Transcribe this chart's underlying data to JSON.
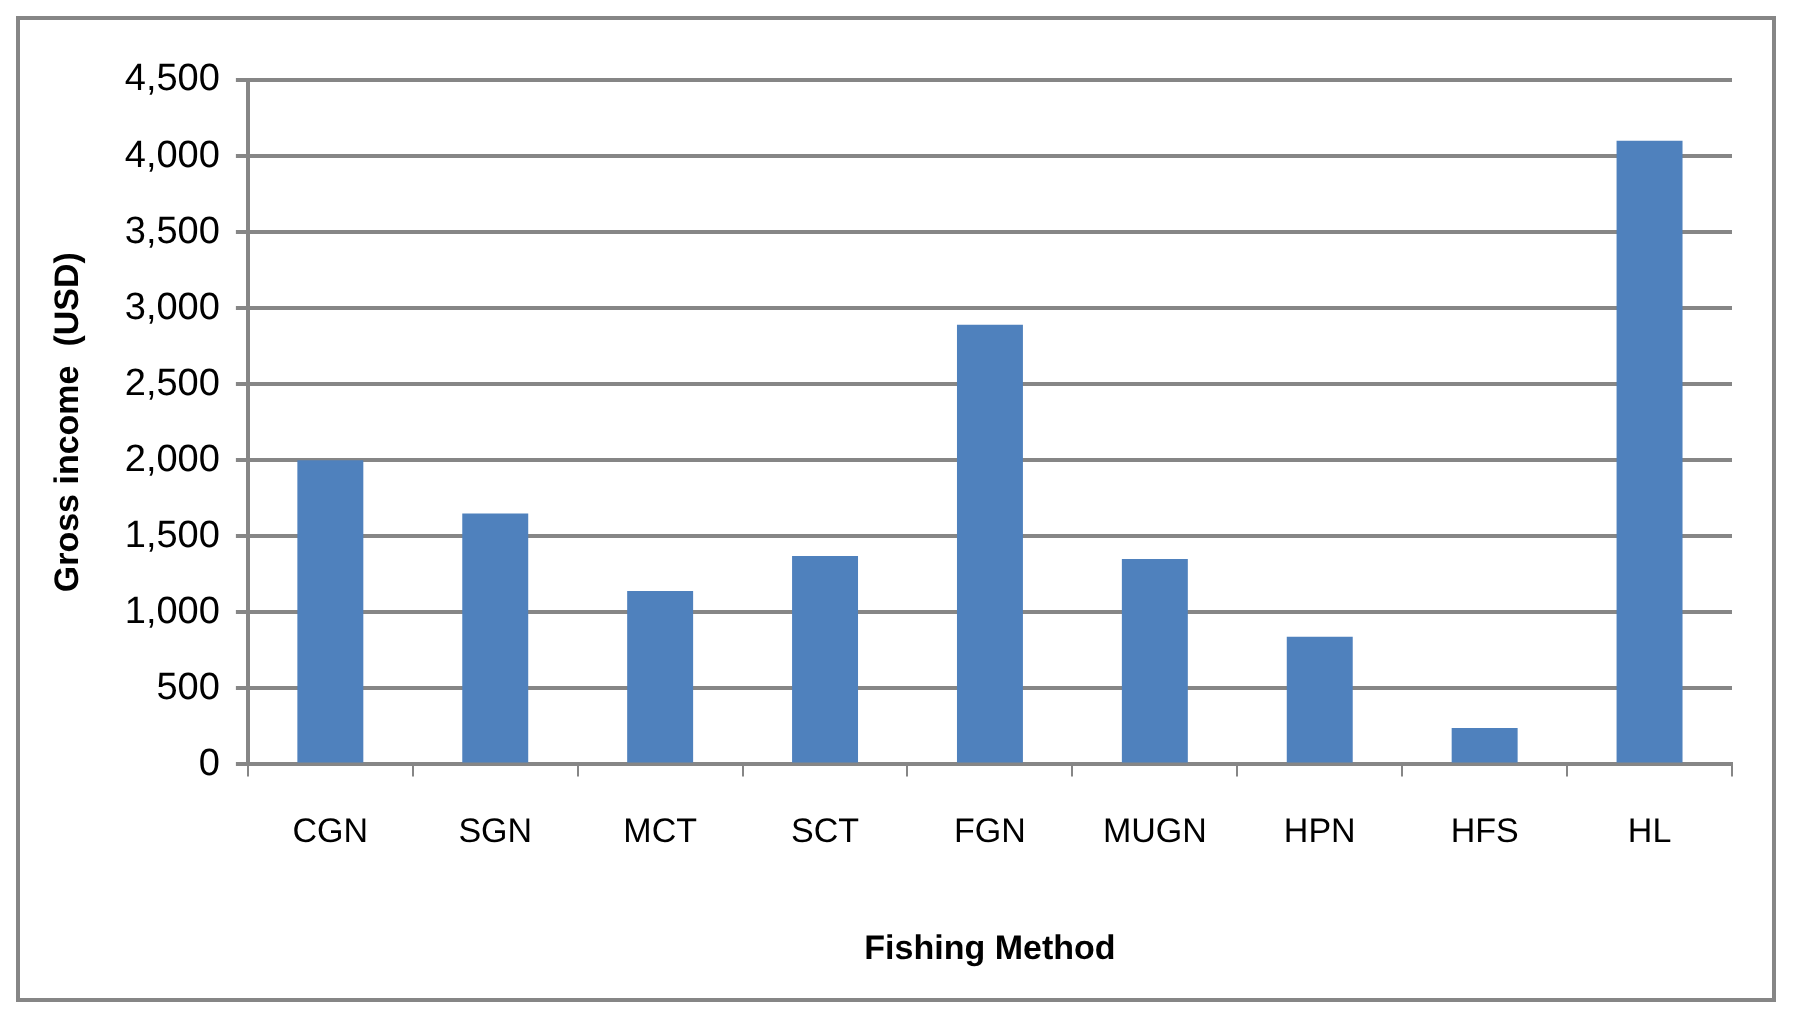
{
  "chart_data": {
    "type": "bar",
    "xlabel": "Fishing Method",
    "ylabel": "Gross income  (USD)",
    "categories": [
      "CGN",
      "SGN",
      "MCT",
      "SCT",
      "FGN",
      "MUGN",
      "HPN",
      "HFS",
      "HL"
    ],
    "values": [
      2000,
      1650,
      1140,
      1370,
      2890,
      1350,
      840,
      240,
      4100
    ],
    "color": "#4f81bd",
    "ylim": [
      0,
      4500
    ],
    "yticks": [
      0,
      500,
      {
        "value": 1000,
        "label": "1,000"
      },
      {
        "value": 1500,
        "label": "1,500"
      },
      {
        "value": 2000,
        "label": "2,000"
      },
      {
        "value": 2500,
        "label": "2,500"
      },
      {
        "value": 3000,
        "label": "3,000"
      },
      {
        "value": 3500,
        "label": "3,500"
      },
      {
        "value": 4000,
        "label": "4,000"
      },
      {
        "value": 4500,
        "label": "4,500"
      }
    ],
    "grid": "y",
    "legend": false
  }
}
